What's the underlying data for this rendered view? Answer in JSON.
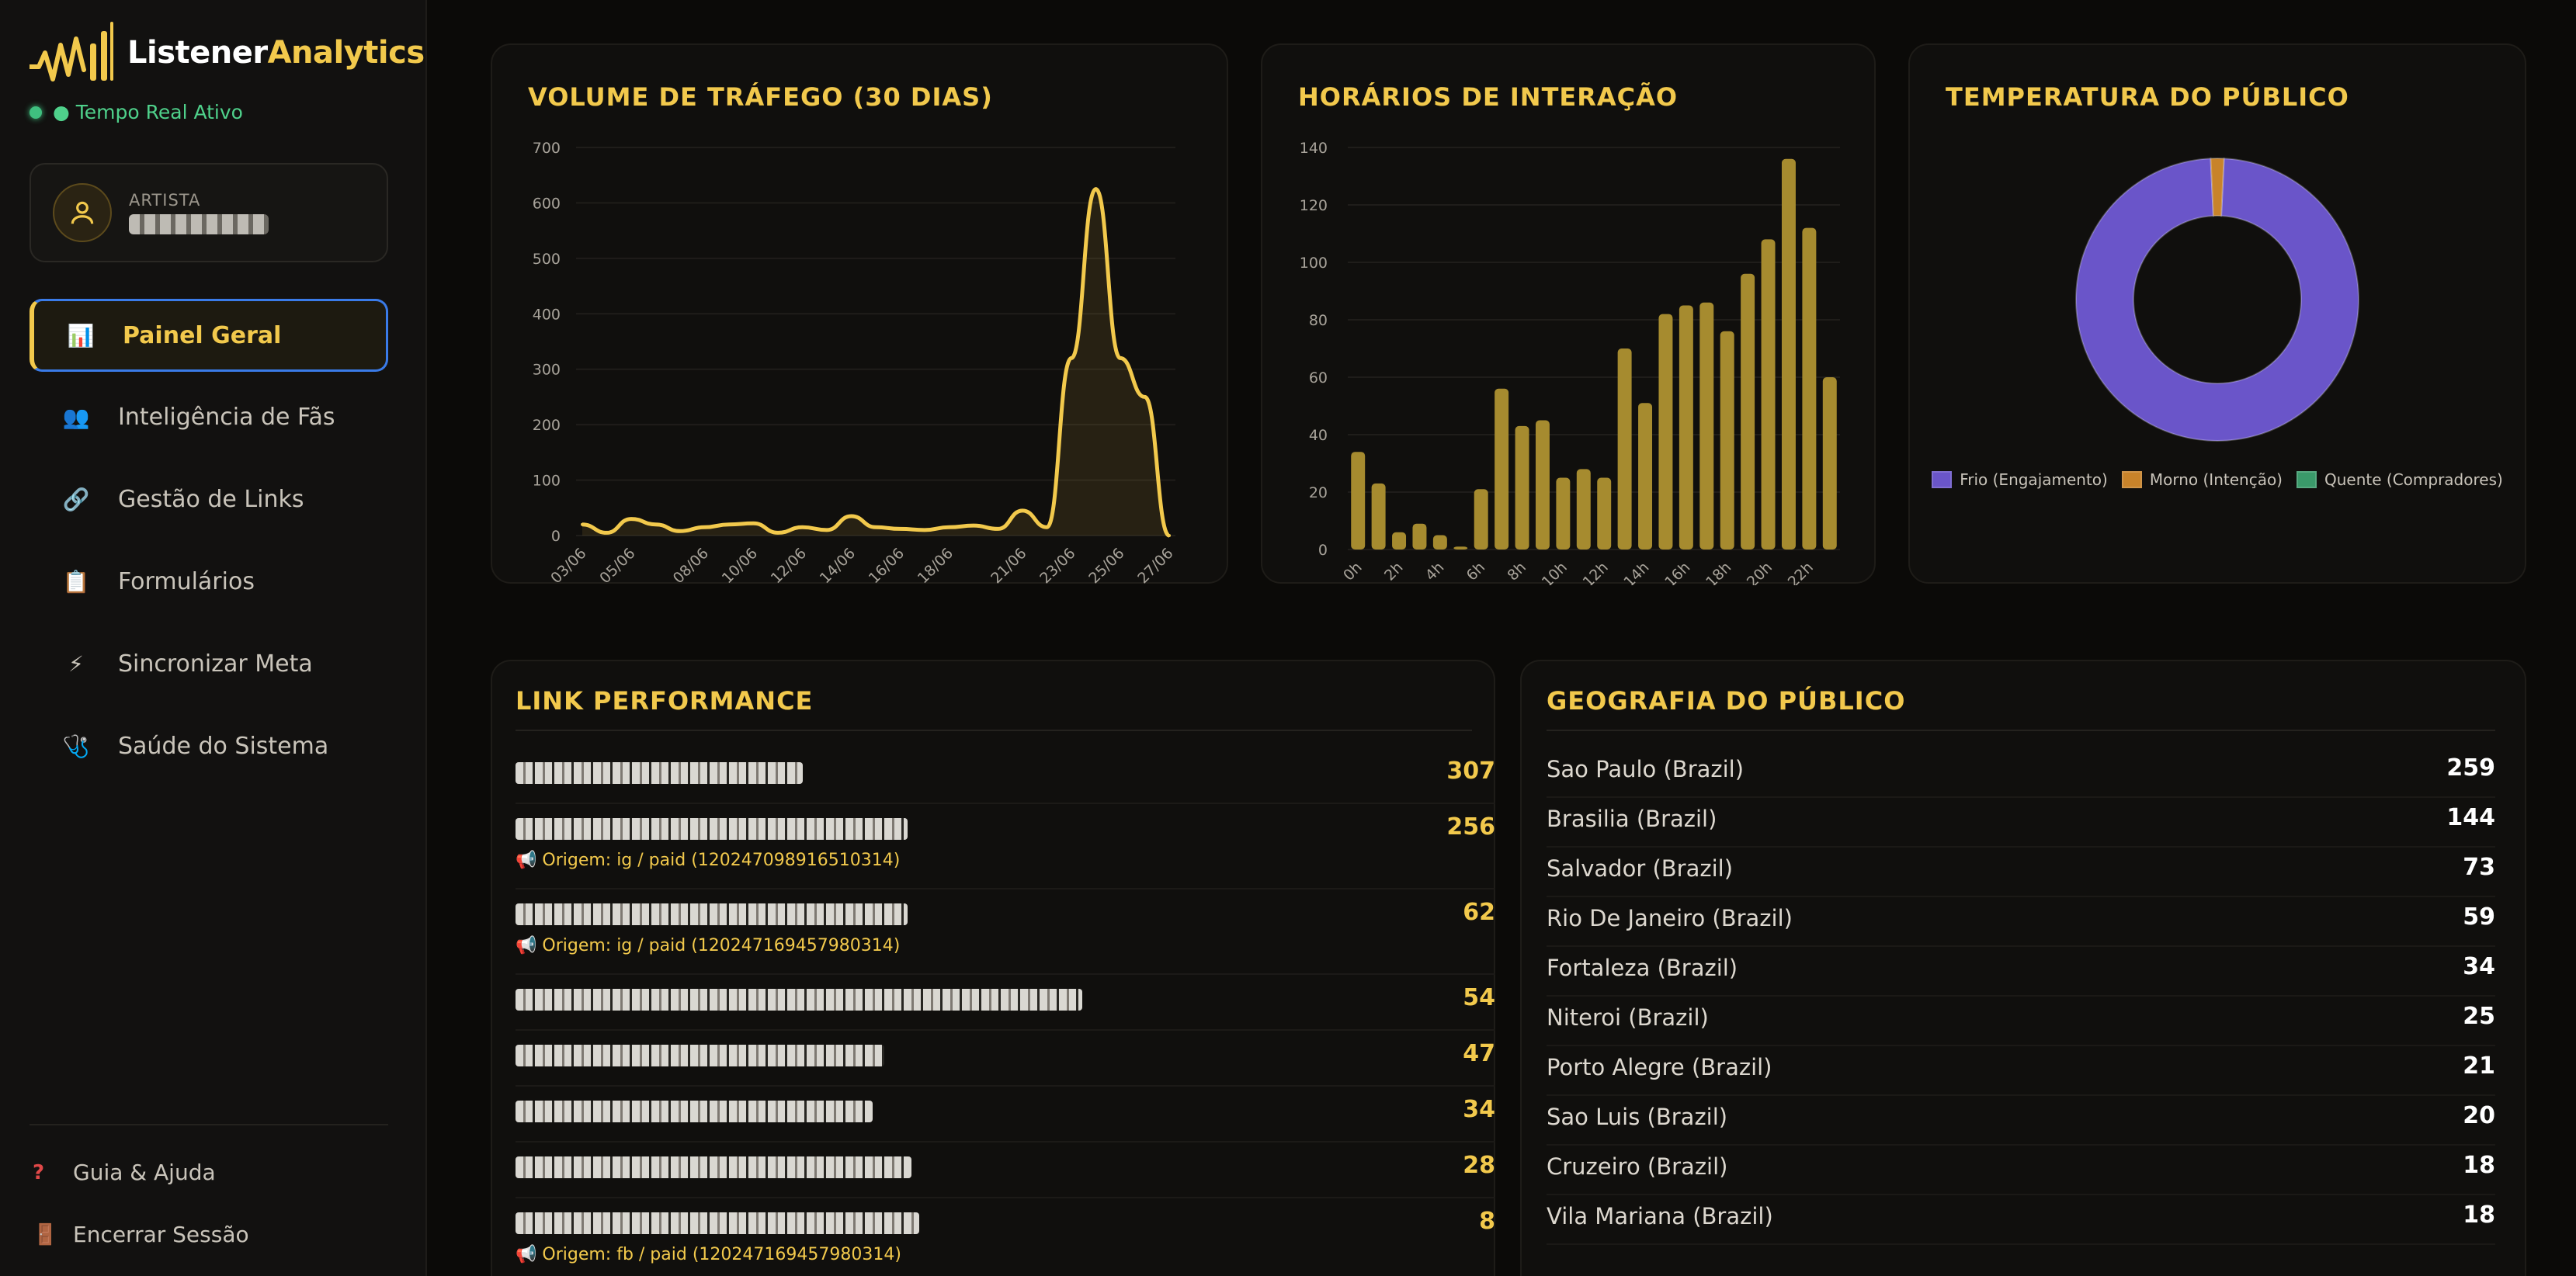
{
  "app": {
    "brand_part1": "Listener",
    "brand_part2": "Analytics",
    "live_status": "● Tempo Real Ativo"
  },
  "artist": {
    "label": "ARTISTA"
  },
  "nav": [
    {
      "label": "Painel Geral",
      "icon": "bar-chart-icon",
      "glyph": "📊",
      "active": true
    },
    {
      "label": "Inteligência de Fãs",
      "icon": "users-icon",
      "glyph": "👥",
      "active": false
    },
    {
      "label": "Gestão de Links",
      "icon": "link-icon",
      "glyph": "🔗",
      "active": false
    },
    {
      "label": "Formulários",
      "icon": "clipboard-icon",
      "glyph": "📋",
      "active": false
    },
    {
      "label": "Sincronizar Meta",
      "icon": "lightning-icon",
      "glyph": "⚡",
      "active": false
    },
    {
      "label": "Saúde do Sistema",
      "icon": "stethoscope-icon",
      "glyph": "🩺",
      "active": false
    }
  ],
  "footer": {
    "help": "Guia & Ajuda",
    "logout": "Encerrar Sessão"
  },
  "colors": {
    "accent": "#f2c94c",
    "bar": "#a68b2f",
    "cold": "#6a55c9",
    "warm": "#c8832a",
    "hot": "#3a9a6a"
  },
  "chart_data": [
    {
      "type": "area",
      "title": "VOLUME DE TRÁFEGO (30 DIAS)",
      "x": [
        "03/06",
        "04/06",
        "05/06",
        "06/06",
        "07/06",
        "08/06",
        "09/06",
        "10/06",
        "11/06",
        "12/06",
        "13/06",
        "14/06",
        "15/06",
        "16/06",
        "17/06",
        "18/06",
        "19/06",
        "20/06",
        "21/06",
        "22/06",
        "23/06",
        "24/06",
        "25/06",
        "26/06",
        "27/06"
      ],
      "x_ticks": [
        "03/06",
        "05/06",
        "08/06",
        "10/06",
        "12/06",
        "14/06",
        "16/06",
        "18/06",
        "21/06",
        "23/06",
        "25/06",
        "27/06"
      ],
      "values": [
        20,
        5,
        30,
        20,
        8,
        15,
        20,
        22,
        5,
        15,
        10,
        35,
        15,
        12,
        10,
        15,
        18,
        12,
        45,
        15,
        320,
        625,
        320,
        250,
        0
      ],
      "ylim": [
        0,
        700
      ],
      "yticks": [
        0,
        100,
        200,
        300,
        400,
        500,
        600,
        700
      ]
    },
    {
      "type": "bar",
      "title": "HORÁRIOS DE INTERAÇÃO",
      "categories": [
        "0h",
        "1h",
        "2h",
        "3h",
        "4h",
        "5h",
        "6h",
        "7h",
        "8h",
        "9h",
        "10h",
        "11h",
        "12h",
        "13h",
        "14h",
        "15h",
        "16h",
        "17h",
        "18h",
        "19h",
        "20h",
        "21h",
        "22h",
        "23h"
      ],
      "x_ticks": [
        "0h",
        "2h",
        "4h",
        "6h",
        "8h",
        "10h",
        "12h",
        "14h",
        "16h",
        "18h",
        "20h",
        "22h"
      ],
      "values": [
        34,
        23,
        6,
        9,
        5,
        1,
        21,
        56,
        43,
        45,
        25,
        28,
        25,
        70,
        51,
        82,
        85,
        86,
        76,
        96,
        108,
        136,
        112,
        60
      ],
      "ylim": [
        0,
        140
      ],
      "yticks": [
        0,
        20,
        40,
        60,
        80,
        100,
        120,
        140
      ]
    },
    {
      "type": "pie",
      "title": "TEMPERATURA DO PÚBLICO",
      "labels": [
        "Frio (Engajamento)",
        "Morno (Intenção)",
        "Quente (Compradores)"
      ],
      "values": [
        98.5,
        1.5,
        0
      ]
    }
  ],
  "links": {
    "title": "LINK PERFORMANCE",
    "items": [
      {
        "count": "307",
        "origin": ""
      },
      {
        "count": "256",
        "origin": "📢 Origem: ig / paid (120247098916510314)"
      },
      {
        "count": "62",
        "origin": "📢 Origem: ig / paid (120247169457980314)"
      },
      {
        "count": "54",
        "origin": ""
      },
      {
        "count": "47",
        "origin": ""
      },
      {
        "count": "34",
        "origin": ""
      },
      {
        "count": "28",
        "origin": ""
      },
      {
        "count": "8",
        "origin": "📢 Origem: fb / paid (120247169457980314)"
      }
    ]
  },
  "geo": {
    "title": "GEOGRAFIA DO PÚBLICO",
    "items": [
      {
        "name": "Sao Paulo (Brazil)",
        "count": "259"
      },
      {
        "name": "Brasilia (Brazil)",
        "count": "144"
      },
      {
        "name": "Salvador (Brazil)",
        "count": "73"
      },
      {
        "name": "Rio De Janeiro (Brazil)",
        "count": "59"
      },
      {
        "name": "Fortaleza (Brazil)",
        "count": "34"
      },
      {
        "name": "Niteroi (Brazil)",
        "count": "25"
      },
      {
        "name": "Porto Alegre (Brazil)",
        "count": "21"
      },
      {
        "name": "Sao Luis (Brazil)",
        "count": "20"
      },
      {
        "name": "Cruzeiro (Brazil)",
        "count": "18"
      },
      {
        "name": "Vila Mariana (Brazil)",
        "count": "18"
      }
    ]
  }
}
